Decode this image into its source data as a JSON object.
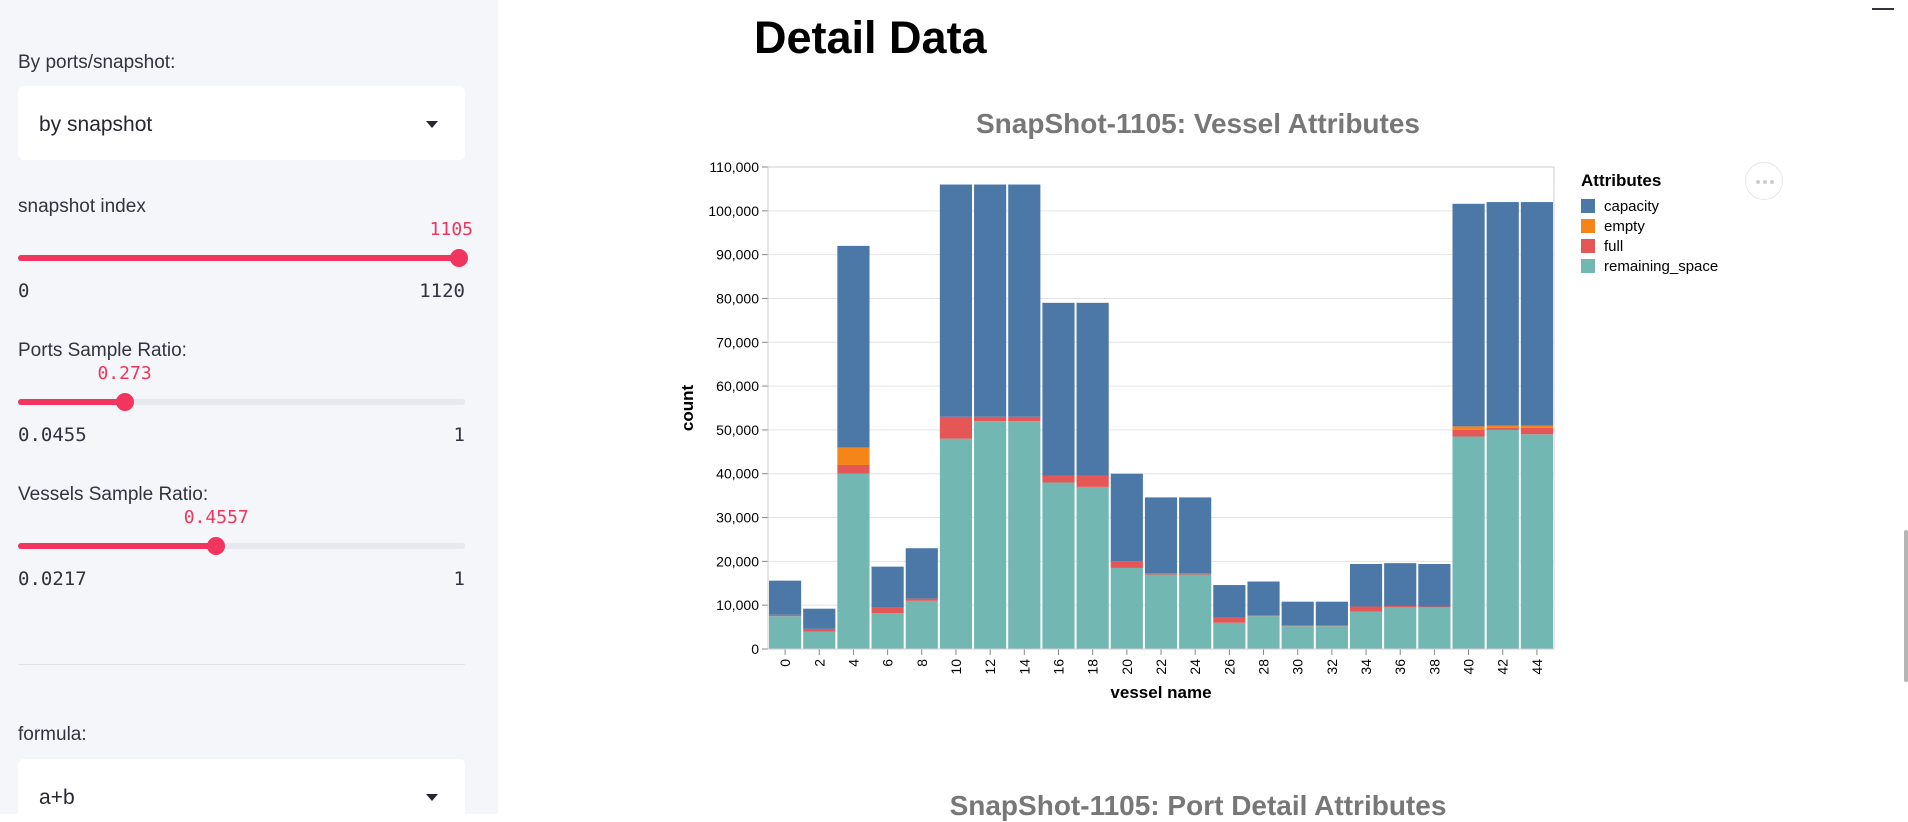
{
  "sidebar": {
    "view_mode": {
      "label": "By ports/snapshot:",
      "value": "by snapshot"
    },
    "snapshot_slider": {
      "label": "snapshot index",
      "value": "1105",
      "min": "0",
      "max": "1120",
      "fraction": 0.9866
    },
    "ports_slider": {
      "label": "Ports Sample Ratio:",
      "value": "0.273",
      "min": "0.0455",
      "max": "1",
      "fraction": 0.2384
    },
    "vessels_slider": {
      "label": "Vessels Sample Ratio:",
      "value": "0.4557",
      "min": "0.0217",
      "max": "1",
      "fraction": 0.4435
    },
    "formula": {
      "label": "formula:",
      "value": "a+b"
    }
  },
  "main": {
    "page_title": "Detail Data",
    "next_chart_title": "SnapShot-1105: Port Detail Attributes"
  },
  "colors": {
    "accent": "#f0355f",
    "capacity": "#4c78a8",
    "empty": "#f58518",
    "full": "#e45756",
    "remaining_space": "#72b7b2"
  },
  "chart_data": {
    "type": "bar",
    "stacked": true,
    "title": "SnapShot-1105: Vessel Attributes",
    "xlabel": "vessel name",
    "ylabel": "count",
    "ylim": [
      0,
      110000
    ],
    "yticks": [
      0,
      10000,
      20000,
      30000,
      40000,
      50000,
      60000,
      70000,
      80000,
      90000,
      100000,
      110000
    ],
    "ytick_labels": [
      "0",
      "10,000",
      "20,000",
      "30,000",
      "40,000",
      "50,000",
      "60,000",
      "70,000",
      "80,000",
      "90,000",
      "100,000",
      "110,000"
    ],
    "x": [
      0,
      2,
      4,
      6,
      8,
      10,
      12,
      14,
      16,
      18,
      20,
      22,
      24,
      26,
      28,
      30,
      32,
      34,
      36,
      38,
      40,
      42,
      44
    ],
    "legend_title": "Attributes",
    "legend_position": "right",
    "grid": true,
    "series": [
      {
        "name": "remaining_space",
        "values": [
          7500,
          4000,
          40000,
          8200,
          11000,
          48000,
          52000,
          52000,
          38000,
          37000,
          18500,
          17000,
          17000,
          6000,
          7500,
          5200,
          5200,
          8500,
          9500,
          9500,
          48500,
          50000,
          49000
        ]
      },
      {
        "name": "full",
        "values": [
          300,
          600,
          2000,
          1200,
          500,
          5000,
          1000,
          1000,
          1500,
          2500,
          1500,
          300,
          300,
          1300,
          200,
          200,
          200,
          1200,
          300,
          200,
          1500,
          500,
          1500
        ]
      },
      {
        "name": "empty",
        "values": [
          0,
          0,
          4000,
          0,
          0,
          0,
          0,
          0,
          0,
          0,
          0,
          0,
          0,
          0,
          0,
          0,
          0,
          0,
          0,
          0,
          800,
          500,
          500
        ]
      },
      {
        "name": "capacity",
        "values": [
          7800,
          4600,
          46000,
          9400,
          11500,
          53000,
          53000,
          53000,
          39500,
          39500,
          20000,
          17300,
          17300,
          7300,
          7700,
          5400,
          5400,
          9700,
          9800,
          9700,
          50800,
          51000,
          51000
        ]
      }
    ]
  }
}
